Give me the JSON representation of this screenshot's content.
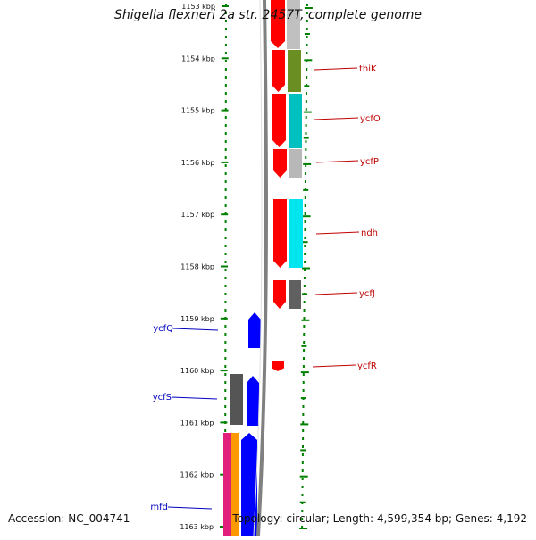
{
  "title": "Shigella flexneri 2a str. 2457T, complete genome",
  "accession": "Accession: NC_004741",
  "topology": "Topology: circular; Length: 4,599,354 bp; Genes: 4,192",
  "colors": {
    "ruler": "#008000",
    "forward_gene": "#ff0000",
    "reverse_gene": "#0000ff",
    "label_right": "#c00000",
    "label_left": "#0000c0",
    "backbone": "#808080"
  },
  "ruler_labels": [
    "1153 kbp",
    "1154 kbp",
    "1155 kbp",
    "1156 kbp",
    "1157 kbp",
    "1158 kbp",
    "1159 kbp",
    "1160 kbp",
    "1161 kbp",
    "1162 kbp",
    "1163 kbp"
  ],
  "gene_labels_right": [
    "thiK",
    "ycfO",
    "ycfP",
    "ndh",
    "ycfJ",
    "ycfR"
  ],
  "gene_labels_left": [
    "ycfQ",
    "ycfS",
    "mfd"
  ]
}
